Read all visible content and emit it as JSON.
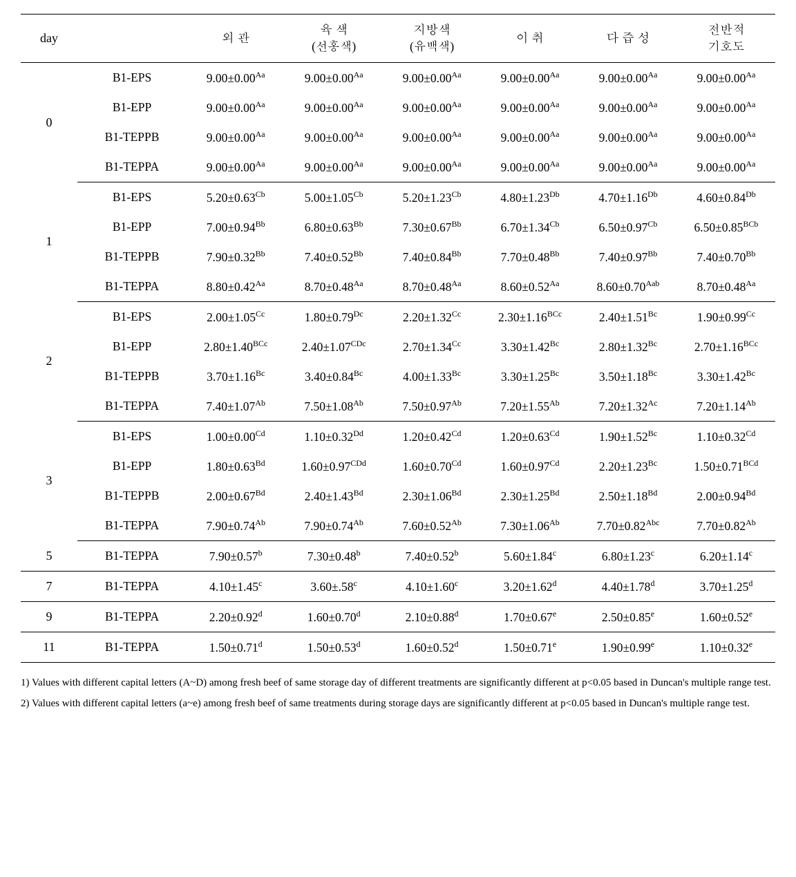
{
  "headers": {
    "day": "day",
    "blank": "",
    "c3": "외 관",
    "c4_top": "육 색",
    "c4_sub": "(선홍색)",
    "c5_top": "지방색",
    "c5_sub": "(유백색)",
    "c6": "이 취",
    "c7": "다 즙 성",
    "c8_top": "전반적",
    "c8_sub": "기호도"
  },
  "groups": [
    {
      "day": "0",
      "rows": [
        {
          "t": "B1-EPS",
          "v": [
            "9.00±0.00|Aa",
            "9.00±0.00|Aa",
            "9.00±0.00|Aa",
            "9.00±0.00|Aa",
            "9.00±0.00|Aa",
            "9.00±0.00|Aa"
          ]
        },
        {
          "t": "B1-EPP",
          "v": [
            "9.00±0.00|Aa",
            "9.00±0.00|Aa",
            "9.00±0.00|Aa",
            "9.00±0.00|Aa",
            "9.00±0.00|Aa",
            "9.00±0.00|Aa"
          ]
        },
        {
          "t": "B1-TEPPB",
          "v": [
            "9.00±0.00|Aa",
            "9.00±0.00|Aa",
            "9.00±0.00|Aa",
            "9.00±0.00|Aa",
            "9.00±0.00|Aa",
            "9.00±0.00|Aa"
          ]
        },
        {
          "t": "B1-TEPPA",
          "v": [
            "9.00±0.00|Aa",
            "9.00±0.00|Aa",
            "9.00±0.00|Aa",
            "9.00±0.00|Aa",
            "9.00±0.00|Aa",
            "9.00±0.00|Aa"
          ]
        }
      ]
    },
    {
      "day": "1",
      "rows": [
        {
          "t": "B1-EPS",
          "v": [
            "5.20±0.63|Cb",
            "5.00±1.05|Cb",
            "5.20±1.23|Cb",
            "4.80±1.23|Db",
            "4.70±1.16|Db",
            "4.60±0.84|Db"
          ]
        },
        {
          "t": "B1-EPP",
          "v": [
            "7.00±0.94|Bb",
            "6.80±0.63|Bb",
            "7.30±0.67|Bb",
            "6.70±1.34|Cb",
            "6.50±0.97|Cb",
            "6.50±0.85|BCb"
          ]
        },
        {
          "t": "B1-TEPPB",
          "v": [
            "7.90±0.32|Bb",
            "7.40±0.52|Bb",
            "7.40±0.84|Bb",
            "7.70±0.48|Bb",
            "7.40±0.97|Bb",
            "7.40±0.70|Bb"
          ]
        },
        {
          "t": "B1-TEPPA",
          "v": [
            "8.80±0.42|Aa",
            "8.70±0.48|Aa",
            "8.70±0.48|Aa",
            "8.60±0.52|Aa",
            "8.60±0.70|Aab",
            "8.70±0.48|Aa"
          ]
        }
      ]
    },
    {
      "day": "2",
      "rows": [
        {
          "t": "B1-EPS",
          "v": [
            "2.00±1.05|Cc",
            "1.80±0.79|Dc",
            "2.20±1.32|Cc",
            "2.30±1.16|BCc",
            "2.40±1.51|Bc",
            "1.90±0.99|Cc"
          ]
        },
        {
          "t": "B1-EPP",
          "v": [
            "2.80±1.40|BCc",
            "2.40±1.07|CDc",
            "2.70±1.34|Cc",
            "3.30±1.42|Bc",
            "2.80±1.32|Bc",
            "2.70±1.16|BCc"
          ]
        },
        {
          "t": "B1-TEPPB",
          "v": [
            "3.70±1.16|Bc",
            "3.40±0.84|Bc",
            "4.00±1.33|Bc",
            "3.30±1.25|Bc",
            "3.50±1.18|Bc",
            "3.30±1.42|Bc"
          ]
        },
        {
          "t": "B1-TEPPA",
          "v": [
            "7.40±1.07|Ab",
            "7.50±1.08|Ab",
            "7.50±0.97|Ab",
            "7.20±1.55|Ab",
            "7.20±1.32|Ac",
            "7.20±1.14|Ab"
          ]
        }
      ]
    },
    {
      "day": "3",
      "rows": [
        {
          "t": "B1-EPS",
          "v": [
            "1.00±0.00|Cd",
            "1.10±0.32|Dd",
            "1.20±0.42|Cd",
            "1.20±0.63|Cd",
            "1.90±1.52|Bc",
            "1.10±0.32|Cd"
          ]
        },
        {
          "t": "B1-EPP",
          "v": [
            "1.80±0.63|Bd",
            "1.60±0.97|CDd",
            "1.60±0.70|Cd",
            "1.60±0.97|Cd",
            "2.20±1.23|Bc",
            "1.50±0.71|BCd"
          ]
        },
        {
          "t": "B1-TEPPB",
          "v": [
            "2.00±0.67|Bd",
            "2.40±1.43|Bd",
            "2.30±1.06|Bd",
            "2.30±1.25|Bd",
            "2.50±1.18|Bd",
            "2.00±0.94|Bd"
          ]
        },
        {
          "t": "B1-TEPPA",
          "v": [
            "7.90±0.74|Ab",
            "7.90±0.74|Ab",
            "7.60±0.52|Ab",
            "7.30±1.06|Ab",
            "7.70±0.82|Abc",
            "7.70±0.82|Ab"
          ]
        }
      ]
    },
    {
      "day": "5",
      "rows": [
        {
          "t": "B1-TEPPA",
          "v": [
            "7.90±0.57|b",
            "7.30±0.48|b",
            "7.40±0.52|b",
            "5.60±1.84|c",
            "6.80±1.23|c",
            "6.20±1.14|c"
          ]
        }
      ]
    },
    {
      "day": "7",
      "rows": [
        {
          "t": "B1-TEPPA",
          "v": [
            "4.10±1.45|c",
            "3.60±.58|c",
            "4.10±1.60|c",
            "3.20±1.62|d",
            "4.40±1.78|d",
            "3.70±1.25|d"
          ]
        }
      ]
    },
    {
      "day": "9",
      "rows": [
        {
          "t": "B1-TEPPA",
          "v": [
            "2.20±0.92|d",
            "1.60±0.70|d",
            "2.10±0.88|d",
            "1.70±0.67|e",
            "2.50±0.85|e",
            "1.60±0.52|e"
          ]
        }
      ]
    },
    {
      "day": "11",
      "rows": [
        {
          "t": "B1-TEPPA",
          "v": [
            "1.50±0.71|d",
            "1.50±0.53|d",
            "1.60±0.52|d",
            "1.50±0.71|e",
            "1.90±0.99|e",
            "1.10±0.32|e"
          ]
        }
      ]
    }
  ],
  "footnotes": [
    "1) Values with different capital letters (A~D) among fresh beef of same storage day of different treatments are significantly different at p<0.05 based in Duncan's multiple range test.",
    "2) Values with different capital letters (a~e) among fresh beef of same treatments during storage days are significantly different at p<0.05 based in Duncan's multiple range test."
  ]
}
